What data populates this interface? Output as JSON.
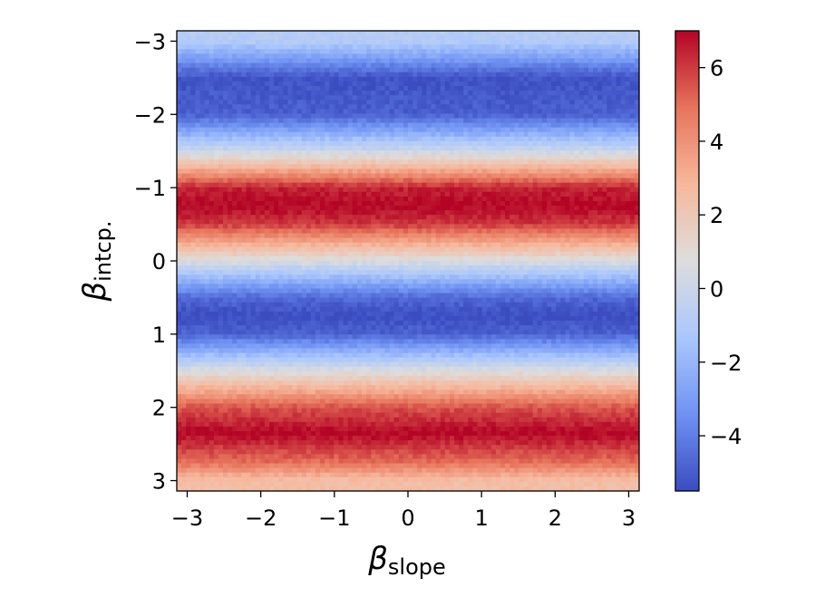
{
  "chart_data": {
    "type": "heatmap",
    "title": "",
    "xlabel": {
      "symbol": "β",
      "subscript": "slope"
    },
    "ylabel": {
      "symbol": "β",
      "subscript": "intcp."
    },
    "xlim": [
      -3.1416,
      3.1416
    ],
    "ylim": [
      -3.1416,
      3.1416
    ],
    "y_inverted": true,
    "x_ticks": [
      -3,
      -2,
      -1,
      0,
      1,
      2,
      3
    ],
    "x_tick_labels": [
      "−3",
      "−2",
      "−1",
      "0",
      "1",
      "2",
      "3"
    ],
    "y_ticks": [
      -3,
      -2,
      -1,
      0,
      1,
      2,
      3
    ],
    "y_tick_labels": [
      "−3",
      "−2",
      "−1",
      "0",
      "1",
      "2",
      "3"
    ],
    "colormap": "coolwarm",
    "colormap_stops": [
      "#3b4cc0",
      "#6f92f3",
      "#aac7fd",
      "#dddddd",
      "#f7b89c",
      "#e7745b",
      "#b40426"
    ],
    "grid_resolution": 100,
    "value_function": "z(x, y) ≈ 0.75 - 6.25 * sin(2 * y)",
    "value_noise_amplitude": 0.35,
    "band_profile": [
      {
        "y": -3.0,
        "value": -0.9
      },
      {
        "y": -2.5,
        "value": -5.3
      },
      {
        "y": -2.0,
        "value": -4.9
      },
      {
        "y": -1.5,
        "value": 0.0
      },
      {
        "y": -1.0,
        "value": 6.4
      },
      {
        "y": -0.75,
        "value": 7.0
      },
      {
        "y": -0.5,
        "value": 6.0
      },
      {
        "y": 0.0,
        "value": 0.6
      },
      {
        "y": 0.5,
        "value": -4.6
      },
      {
        "y": 0.75,
        "value": -5.5
      },
      {
        "y": 1.0,
        "value": -4.8
      },
      {
        "y": 1.5,
        "value": 0.6
      },
      {
        "y": 2.0,
        "value": 5.5
      },
      {
        "y": 2.35,
        "value": 7.0
      },
      {
        "y": 2.75,
        "value": 5.0
      },
      {
        "y": 3.0,
        "value": 2.5
      }
    ],
    "colorbar": {
      "vmin": -5.5,
      "vmax": 7.0,
      "ticks": [
        -4,
        -2,
        0,
        2,
        4,
        6
      ],
      "tick_labels": [
        "−4",
        "−2",
        "0",
        "2",
        "4",
        "6"
      ]
    }
  }
}
